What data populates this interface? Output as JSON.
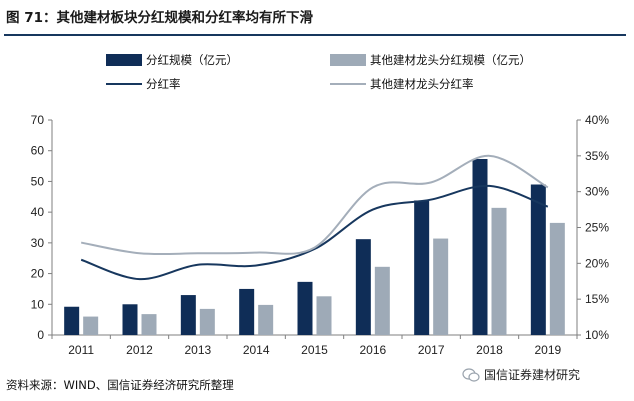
{
  "figure": {
    "title": "图 71：其他建材板块分红规模和分红率均有所下滑",
    "source": "资料来源：WIND、国信证券经济研究所整理",
    "watermark": "国信证券建材研究"
  },
  "chart_data": {
    "type": "bar",
    "categories": [
      "2011",
      "2012",
      "2013",
      "2014",
      "2015",
      "2016",
      "2017",
      "2018",
      "2019"
    ],
    "series": [
      {
        "name": "分红规模（亿元）",
        "kind": "bar",
        "axis": "left",
        "color": "#0f2d57",
        "values": [
          9.2,
          10.0,
          13.0,
          15.0,
          17.3,
          31.2,
          43.8,
          57.3,
          49.0
        ]
      },
      {
        "name": "其他建材龙头分红规模（亿元）",
        "kind": "bar",
        "axis": "left",
        "color": "#9eaab7",
        "values": [
          6.0,
          6.8,
          8.5,
          9.8,
          12.6,
          22.2,
          31.4,
          41.4,
          36.5
        ]
      },
      {
        "name": "分红率",
        "kind": "line",
        "axis": "right",
        "color": "#17375e",
        "values": [
          20.5,
          17.8,
          19.8,
          19.7,
          22.0,
          27.5,
          28.9,
          30.8,
          27.9
        ]
      },
      {
        "name": "其他建材龙头分红率",
        "kind": "line",
        "axis": "right",
        "color": "#a4aeba",
        "values": [
          22.9,
          21.4,
          21.4,
          21.5,
          22.2,
          30.6,
          31.3,
          35.0,
          30.6
        ]
      }
    ],
    "y_left": {
      "min": 0,
      "max": 70,
      "ticks": [
        0,
        10,
        20,
        30,
        40,
        50,
        60,
        70
      ]
    },
    "y_right": {
      "min": 10,
      "max": 40,
      "ticks": [
        "10%",
        "15%",
        "20%",
        "25%",
        "30%",
        "35%",
        "40%"
      ]
    },
    "legend_position": "top",
    "grid": false
  }
}
